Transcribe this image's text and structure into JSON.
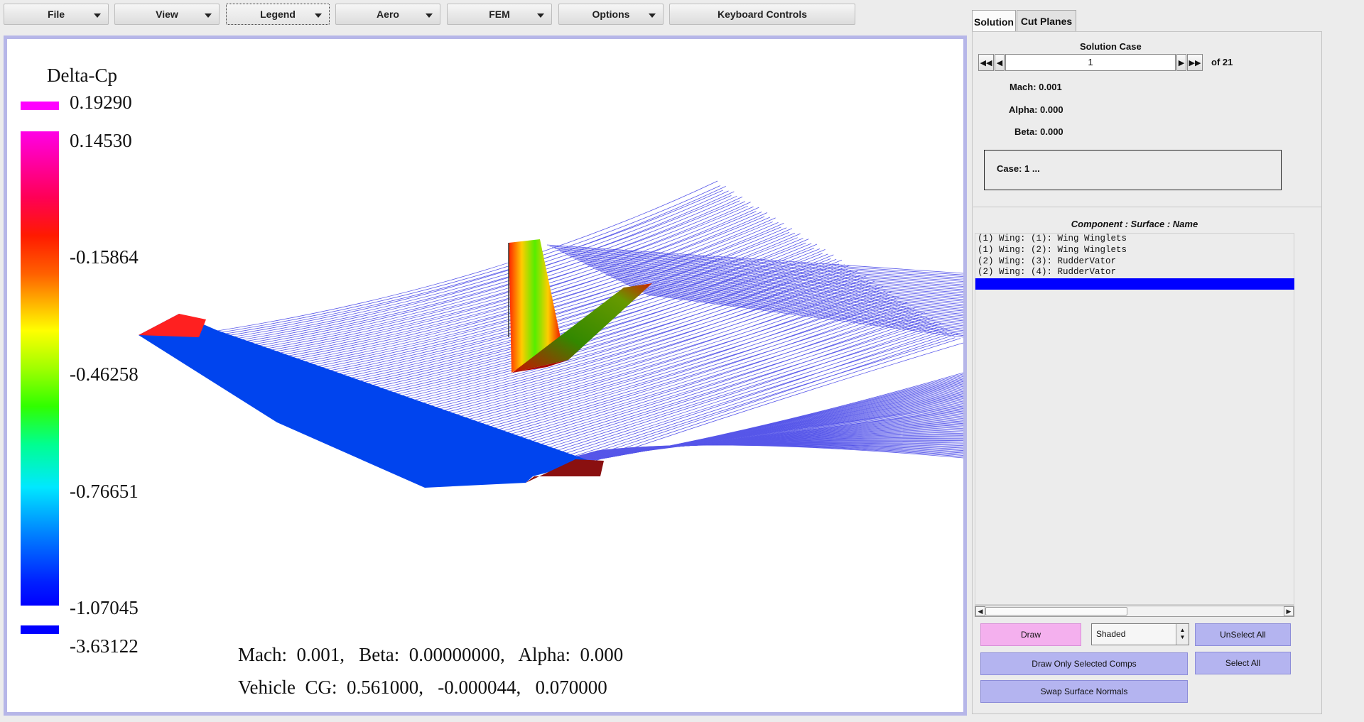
{
  "menu": {
    "items": [
      {
        "label": "File"
      },
      {
        "label": "View"
      },
      {
        "label": "Legend"
      },
      {
        "label": "Aero"
      },
      {
        "label": "FEM"
      },
      {
        "label": "Options"
      },
      {
        "label": "Keyboard Controls"
      }
    ]
  },
  "legend": {
    "title": "Delta-Cp",
    "labels": [
      "0.19290",
      "0.14530",
      "-0.15864",
      "-0.46258",
      "-0.76651",
      "-1.07045",
      "-3.63122"
    ],
    "colors": {
      "max": "#ff00ff",
      "min": "#0000ff"
    }
  },
  "overlay": {
    "line1": "Mach:  0.001,   Beta:  0.00000000,   Alpha:  0.000",
    "line2": "Vehicle  CG:  0.561000,   -0.000044,   0.070000"
  },
  "tabs": [
    {
      "label": "Solution"
    },
    {
      "label": "Cut Planes"
    }
  ],
  "solution": {
    "header": "Solution Case",
    "case_value": "1",
    "of_total": "of 21",
    "mach": "Mach: 0.001",
    "alpha": "Alpha: 0.000",
    "beta": "Beta: 0.000",
    "case_text": "Case: 1 ..."
  },
  "components": {
    "header": "Component : Surface : Name",
    "items": [
      "(1) Wing: (1): Wing Winglets",
      "(1) Wing: (2): Wing Winglets",
      "(2) Wing: (3): RudderVator",
      "(2) Wing: (4): RudderVator"
    ]
  },
  "buttons": {
    "draw": "Draw",
    "shaded": "Shaded",
    "unselect_all": "UnSelect All",
    "draw_only_selected": "Draw Only Selected Comps",
    "select_all": "Select All",
    "swap_normals": "Swap Surface Normals"
  },
  "colors": {
    "viewport_border": "#b6b6e8",
    "button_blue": "#b4b4f0",
    "button_pink": "#f4b0ee",
    "selection": "#0000ff",
    "wake": "#3a3ae6"
  }
}
